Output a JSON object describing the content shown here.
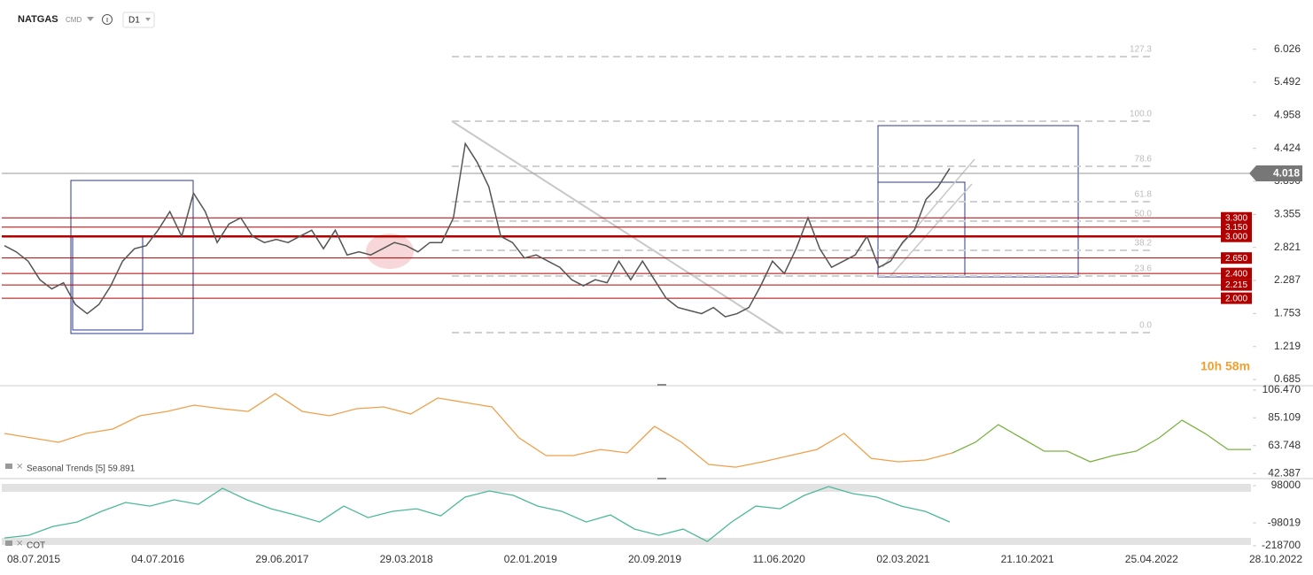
{
  "header": {
    "symbol": "NATGAS",
    "market": "CMD",
    "interval": "D1"
  },
  "timer": "10h 58m",
  "time_axis": {
    "labels": [
      "08.07.2015",
      "04.07.2016",
      "29.06.2017",
      "29.03.2018",
      "02.01.2019",
      "20.09.2019",
      "11.06.2020",
      "02.03.2021",
      "21.10.2021",
      "25.04.2022",
      "28.10.2022"
    ]
  },
  "chart_data": [
    {
      "type": "line",
      "ylim": [
        0.6,
        6.25
      ],
      "yticks": [
        6.026,
        5.492,
        4.958,
        4.424,
        {
          "value": 3.89,
          "label": "3.890"
        },
        3.355,
        2.821,
        2.287,
        1.753,
        1.219,
        0.685
      ],
      "series": [
        {
          "color": "#555555",
          "values": [
            2.85,
            2.75,
            2.6,
            2.3,
            2.15,
            2.25,
            1.9,
            1.75,
            1.9,
            2.2,
            2.6,
            2.8,
            2.85,
            3.1,
            3.4,
            3.0,
            3.7,
            3.4,
            2.9,
            3.2,
            3.3,
            3.0,
            2.9,
            2.95,
            2.9,
            3.0,
            3.1,
            2.8,
            3.1,
            2.7,
            2.75,
            2.7,
            2.8,
            2.9,
            2.85,
            2.75,
            2.9,
            2.9,
            3.3,
            4.5,
            4.2,
            3.8,
            3.0,
            2.9,
            2.65,
            2.7,
            2.6,
            2.5,
            2.3,
            2.2,
            2.3,
            2.25,
            2.6,
            2.3,
            2.6,
            2.3,
            2.0,
            1.85,
            1.8,
            1.75,
            1.85,
            1.7,
            1.75,
            1.85,
            2.2,
            2.6,
            2.4,
            2.8,
            3.3,
            2.8,
            2.5,
            2.6,
            2.7,
            3.0,
            2.5,
            2.6,
            2.9,
            3.1,
            3.6,
            3.8,
            4.1
          ]
        }
      ],
      "levels": [
        {
          "value": 3.3,
          "label": "3.300"
        },
        {
          "value": 3.15,
          "label": "3.150"
        },
        {
          "value": 3.0,
          "label": "3.000"
        },
        {
          "value": 2.65,
          "label": "2.650"
        },
        {
          "value": 2.4,
          "label": "2.400"
        },
        {
          "value": 2.215,
          "label": "2.215"
        },
        {
          "value": 2.0,
          "label": "2.000"
        }
      ],
      "level_color": "#b00000",
      "fibonacci": [
        {
          "label": "127.3",
          "price": 5.907
        },
        {
          "label": "100.0",
          "price": 4.862
        },
        {
          "label": "78.6",
          "price": 4.133
        },
        {
          "label": "61.8",
          "price": 3.561
        },
        {
          "label": "50.0",
          "price": 3.246
        },
        {
          "label": "38.2",
          "price": 2.774
        },
        {
          "label": "23.6",
          "price": 2.36
        },
        {
          "label": "0.0",
          "price": 1.444
        }
      ],
      "last_price": {
        "value": 4.018,
        "label": "4.018"
      }
    },
    {
      "type": "line",
      "label": "Seasonal  Trends [5] 59.891",
      "ylim": [
        39.1,
        109.1
      ],
      "yticks": [
        {
          "value": 106.47,
          "label": "106.470"
        },
        85.109,
        63.748,
        42.387
      ],
      "series": [
        {
          "color": "#f0a04b",
          "values": [
            73.1,
            69.7,
            66.3,
            73.1,
            76.5,
            86.7,
            90.0,
            94.8,
            92.1,
            90.0,
            103.7,
            90.0,
            86.7,
            92.1,
            93.5,
            88.0,
            100.3,
            96.9,
            93.5,
            69.7,
            56.1,
            56.1,
            60.8,
            58.1,
            78.5,
            66.3,
            49.3,
            47.2,
            51.3,
            56.1,
            60.8,
            73.1,
            54.0,
            51.3,
            52.7,
            58.1
          ]
        },
        {
          "color": "#7cb342",
          "values": [
            58.1,
            66.3,
            79.9,
            69.7,
            59.5,
            59.5,
            51.3,
            56.1,
            59.5,
            69.7,
            83.3,
            73.1,
            60.8,
            60.8
          ]
        }
      ]
    },
    {
      "type": "line",
      "label": "COT",
      "ylim": [
        -232800,
        116800
      ],
      "yticks": [
        98000,
        -98019,
        -218700
      ],
      "series": [
        {
          "color": "#4cb89a",
          "values": [
            -177400,
            -163400,
            -116700,
            -93400,
            -37300,
            9400,
            -9300,
            23400,
            0,
            84100,
            23400,
            -23300,
            -56000,
            -93400,
            -9300,
            -70000,
            -37300,
            -23300,
            -60700,
            37400,
            70100,
            46800,
            -9300,
            -37300,
            -93400,
            -56000,
            -130700,
            -163400,
            -130700,
            -196100,
            -93400,
            -9300,
            -23300,
            46800,
            93400,
            56100,
            37400,
            -9300,
            -37300,
            -93400
          ]
        }
      ]
    }
  ]
}
